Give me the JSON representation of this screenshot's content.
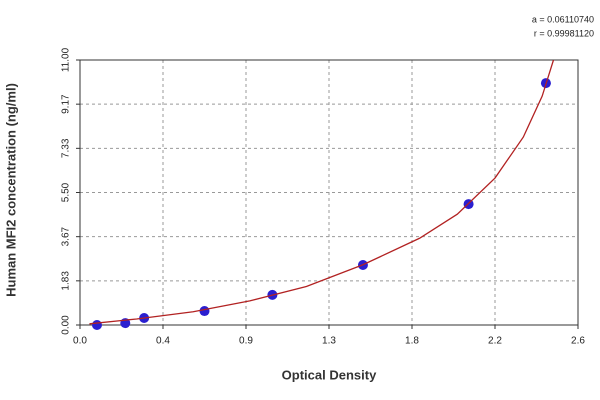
{
  "chart_data": {
    "type": "scatter",
    "x_label": "Optical Density",
    "y_label": "Human MFI2 concentration (ng/ml)",
    "annotations": [
      "a = 0.06110740",
      "r = 0.99981120"
    ],
    "xlim": [
      0,
      2.64
    ],
    "xticks": [
      {
        "value": 0,
        "label": "0.0"
      },
      {
        "value": 0.44,
        "label": "0.4"
      },
      {
        "value": 0.88,
        "label": "0.9"
      },
      {
        "value": 1.32,
        "label": "1.3"
      },
      {
        "value": 1.76,
        "label": "1.8"
      },
      {
        "value": 2.2,
        "label": "2.2"
      },
      {
        "value": 2.64,
        "label": "2.6"
      }
    ],
    "ylim": [
      0,
      11
    ],
    "yticks": [
      {
        "value": 0,
        "label": "0.00"
      },
      {
        "value": 1.8333,
        "label": "1.83"
      },
      {
        "value": 3.6667,
        "label": "3.67"
      },
      {
        "value": 5.5,
        "label": "5.50"
      },
      {
        "value": 7.3333,
        "label": "7.33"
      },
      {
        "value": 9.1667,
        "label": "9.17"
      },
      {
        "value": 11,
        "label": "11.00"
      }
    ],
    "grid": true,
    "series": [
      {
        "type": "scatter",
        "color": "#2a1fd0",
        "x": [
          0.09,
          0.24,
          0.34,
          0.66,
          1.02,
          1.5,
          2.06,
          2.47
        ],
        "values": [
          0,
          0.08,
          0.29,
          0.58,
          1.25,
          2.49,
          5.02,
          10.04
        ]
      },
      {
        "type": "line",
        "color": "#b22222",
        "x": [
          0.05,
          0.3,
          0.6,
          0.9,
          1.2,
          1.5,
          1.8,
          2.0,
          2.2,
          2.35,
          2.45,
          2.51
        ],
        "values": [
          0.05,
          0.25,
          0.55,
          1.0,
          1.6,
          2.5,
          3.6,
          4.6,
          6.1,
          7.8,
          9.5,
          11.0
        ]
      }
    ]
  }
}
